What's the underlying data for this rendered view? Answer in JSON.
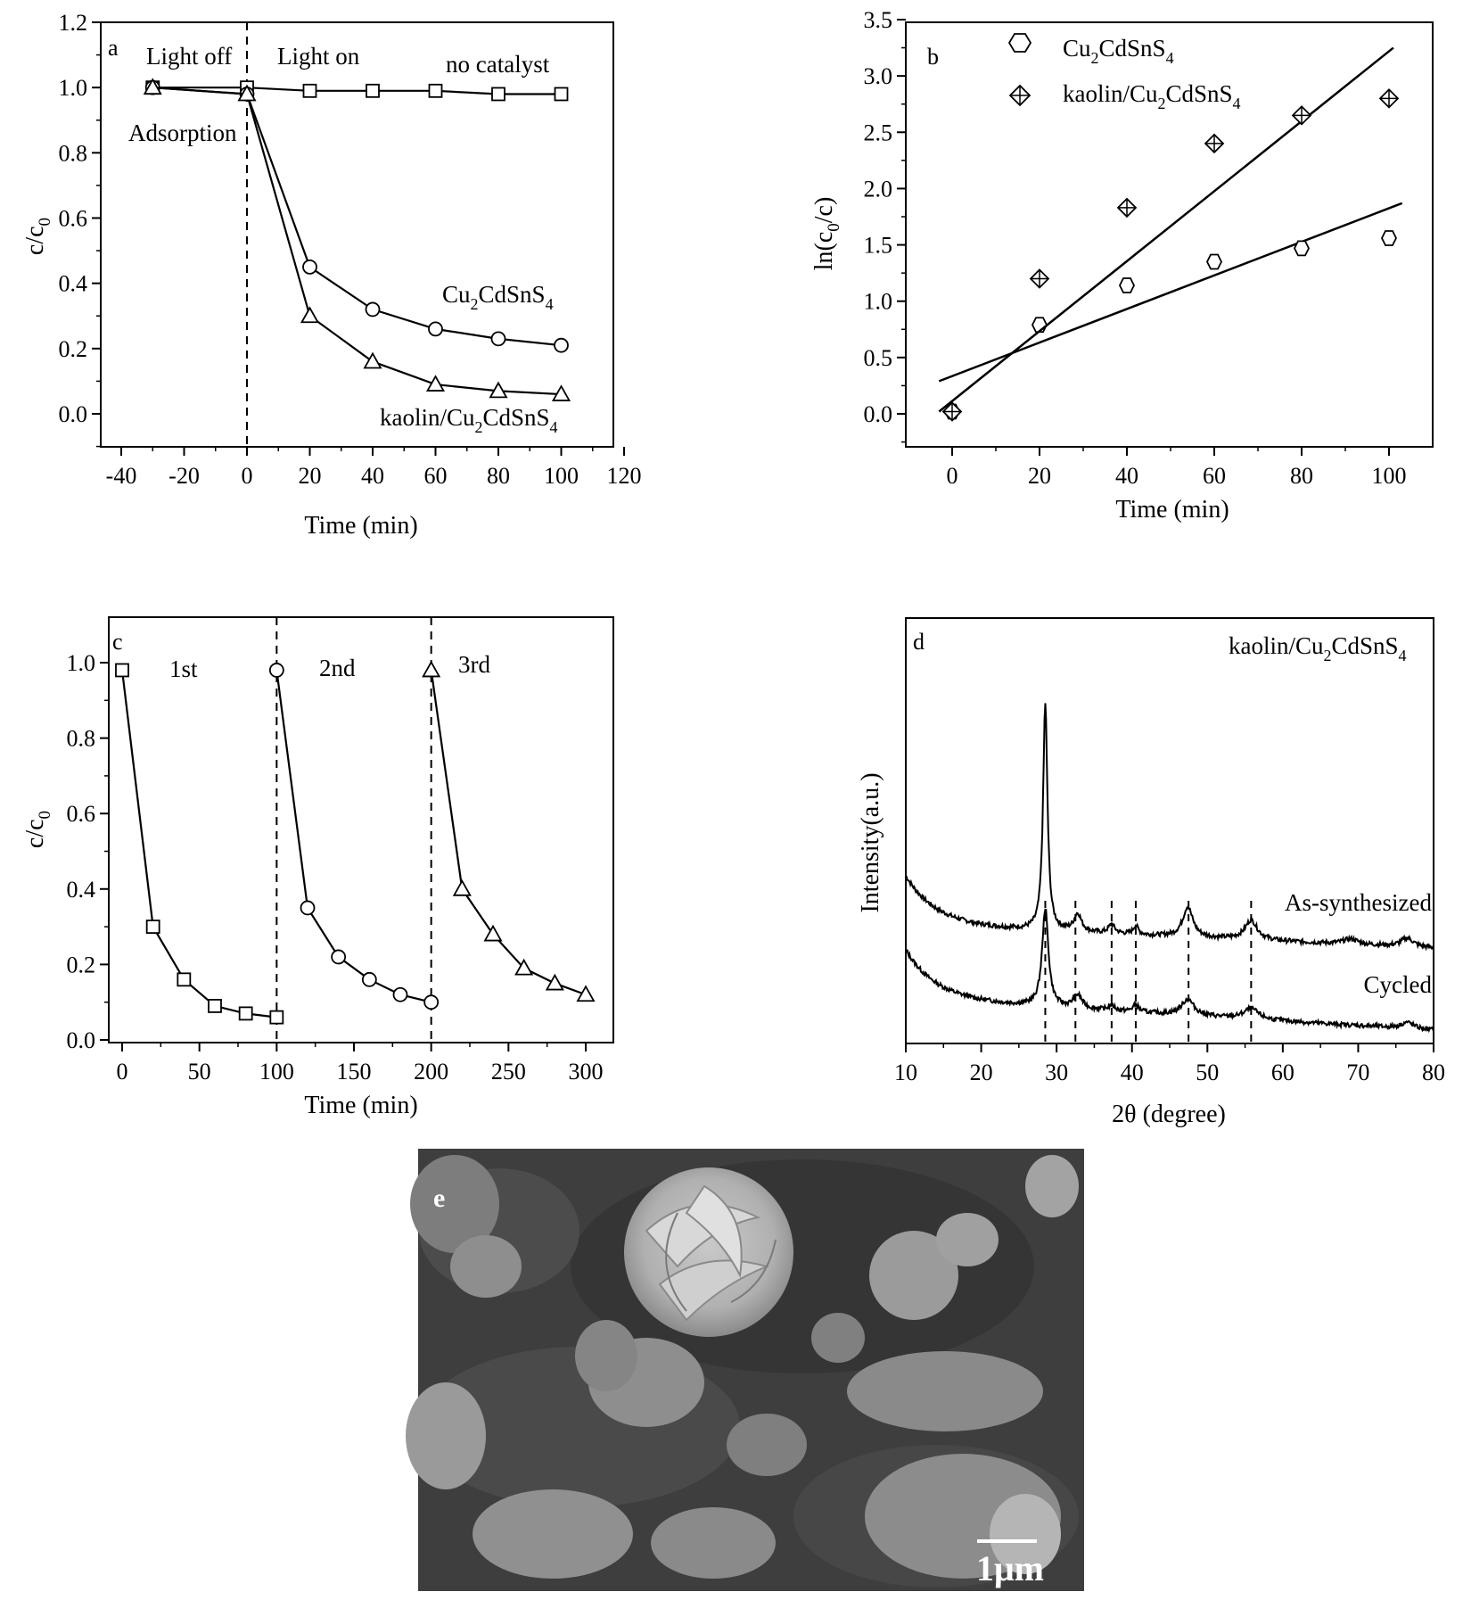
{
  "chart_data": [
    {
      "panel": "a",
      "type": "line",
      "xlabel": "Time (min)",
      "ylabel": "c/c0",
      "xlim": [
        -50,
        120
      ],
      "ylim": [
        -0.1,
        1.2
      ],
      "xticks": [
        -40,
        -20,
        0,
        20,
        40,
        60,
        80,
        100,
        120
      ],
      "yticks": [
        0.0,
        0.2,
        0.4,
        0.6,
        0.8,
        1.0,
        1.2
      ],
      "annotations": [
        "Light off",
        "Light on",
        "Adsorption"
      ],
      "vline_x": 0,
      "series": [
        {
          "name": "no catalyst",
          "marker": "square",
          "x": [
            -30,
            0,
            20,
            40,
            60,
            80,
            100
          ],
          "y": [
            1.0,
            1.0,
            0.99,
            0.99,
            0.99,
            0.98,
            0.98
          ]
        },
        {
          "name": "Cu2CdSnS4",
          "marker": "circle",
          "x": [
            -30,
            0,
            20,
            40,
            60,
            80,
            100
          ],
          "y": [
            1.0,
            0.98,
            0.45,
            0.32,
            0.26,
            0.23,
            0.21
          ]
        },
        {
          "name": "kaolin/Cu2CdSnS4",
          "marker": "triangle",
          "x": [
            -30,
            0,
            20,
            40,
            60,
            80,
            100
          ],
          "y": [
            1.0,
            0.98,
            0.3,
            0.16,
            0.09,
            0.07,
            0.06
          ]
        }
      ],
      "series_labels": {
        "no_catalyst": "no catalyst",
        "ccts": "Cu2CdSnS4",
        "kaolin": "kaolin/Cu2CdSnS4"
      }
    },
    {
      "panel": "b",
      "type": "scatter",
      "xlabel": "Time (min)",
      "ylabel": "ln(c0/c)",
      "xlim": [
        -10,
        110
      ],
      "ylim": [
        -0.3,
        3.5
      ],
      "xticks": [
        0,
        20,
        40,
        60,
        80,
        100
      ],
      "yticks": [
        0.0,
        0.5,
        1.0,
        1.5,
        2.0,
        2.5,
        3.0,
        3.5
      ],
      "legend_position": "top-left",
      "series": [
        {
          "name": "Cu2CdSnS4",
          "marker": "hexagon",
          "x": [
            0,
            20,
            40,
            60,
            80,
            100
          ],
          "y": [
            0.02,
            0.79,
            1.14,
            1.35,
            1.47,
            1.56
          ],
          "fit": {
            "x": [
              -3,
              103
            ],
            "y": [
              0.29,
              1.87
            ]
          }
        },
        {
          "name": "kaolin/Cu2CdSnS4",
          "marker": "crossed-diamond",
          "x": [
            0,
            20,
            40,
            60,
            80,
            100
          ],
          "y": [
            0.02,
            1.2,
            1.83,
            2.4,
            2.65,
            2.8
          ],
          "fit": {
            "x": [
              -3,
              101
            ],
            "y": [
              0.02,
              3.25
            ]
          }
        }
      ]
    },
    {
      "panel": "c",
      "type": "line",
      "xlabel": "Time (min)",
      "ylabel": "c/c0",
      "xlim": [
        -10,
        320
      ],
      "ylim": [
        0.0,
        1.1
      ],
      "xticks": [
        0,
        50,
        100,
        150,
        200,
        250,
        300
      ],
      "yticks": [
        0.0,
        0.2,
        0.4,
        0.6,
        0.8,
        1.0
      ],
      "annotations": [
        "1st",
        "2nd",
        "3rd"
      ],
      "vlines_x": [
        100,
        200
      ],
      "series": [
        {
          "name": "1st",
          "marker": "square",
          "x": [
            0,
            20,
            40,
            60,
            80,
            100
          ],
          "y": [
            0.98,
            0.3,
            0.16,
            0.09,
            0.07,
            0.06
          ]
        },
        {
          "name": "2nd",
          "marker": "circle",
          "x": [
            100,
            120,
            140,
            160,
            180,
            200
          ],
          "y": [
            0.98,
            0.35,
            0.22,
            0.16,
            0.12,
            0.1
          ]
        },
        {
          "name": "3rd",
          "marker": "triangle",
          "x": [
            200,
            220,
            240,
            260,
            280,
            300
          ],
          "y": [
            0.98,
            0.4,
            0.28,
            0.19,
            0.15,
            0.12
          ]
        }
      ]
    },
    {
      "panel": "d",
      "type": "line",
      "xlabel": "2θ (degree)",
      "ylabel": "Intensity(a.u.)",
      "xlim": [
        10,
        80
      ],
      "xticks": [
        10,
        20,
        30,
        40,
        50,
        60,
        70,
        80
      ],
      "sample_label": "kaolin/Cu2CdSnS4",
      "dashed_peak_positions": [
        28.5,
        32.5,
        37.3,
        40.5,
        47.5,
        55.8
      ],
      "series": [
        {
          "name": "As-synthesized",
          "peaks_2theta": [
            28.5,
            32.8,
            37.3,
            40.5,
            47.4,
            55.8,
            69.0,
            76.5
          ]
        },
        {
          "name": "Cycled",
          "peaks_2theta": [
            28.5,
            32.8,
            37.3,
            40.5,
            47.4,
            55.8,
            76.5
          ]
        }
      ]
    }
  ],
  "panel_letters": {
    "a": "a",
    "b": "b",
    "c": "c",
    "d": "d",
    "e": "e"
  },
  "labels": {
    "a_light_off": "Light off",
    "a_light_on": "Light on",
    "a_no_catalyst": "no catalyst",
    "a_adsorption": "Adsorption",
    "c_first": "1st",
    "c_second": "2nd",
    "c_third": "3rd",
    "d_as_synth": "As-synthesized",
    "d_cycled": "Cycled"
  },
  "sem_image": {
    "panel": "e",
    "scale_bar": "1μm"
  },
  "colors": {
    "line": "#000000",
    "background": "#ffffff",
    "sem_bg": "#3e3e3e"
  }
}
